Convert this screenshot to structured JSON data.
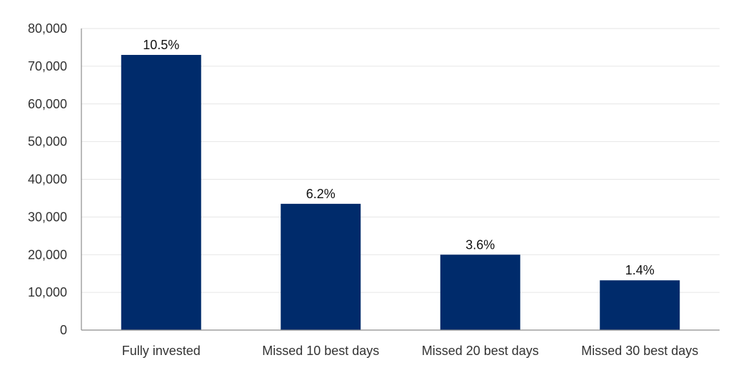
{
  "chart_data": {
    "type": "bar",
    "categories": [
      "Fully invested",
      "Missed 10 best days",
      "Missed 20 best days",
      "Missed 30 best days"
    ],
    "values": [
      73000,
      33500,
      20000,
      13200
    ],
    "data_labels": [
      "10.5%",
      "6.2%",
      "3.6%",
      "1.4%"
    ],
    "ylim": [
      0,
      80000
    ],
    "yticks": [
      0,
      10000,
      20000,
      30000,
      40000,
      50000,
      60000,
      70000,
      80000
    ],
    "ytick_labels": [
      "0",
      "10,000",
      "20,000",
      "30,000",
      "40,000",
      "50,000",
      "60,000",
      "70,000",
      "80,000"
    ],
    "grid": true,
    "bar_color": "#002b6b"
  }
}
